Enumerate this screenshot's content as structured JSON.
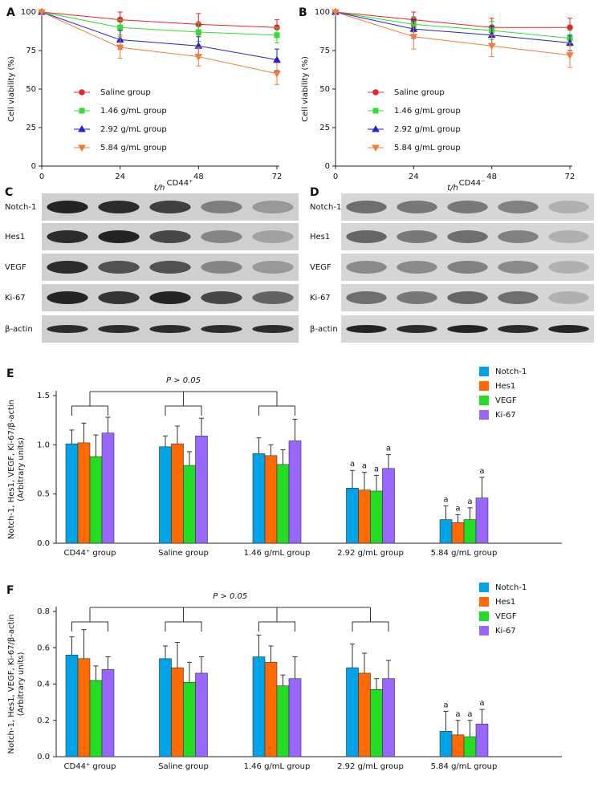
{
  "chart_data": [
    {
      "type": "line",
      "panel": "A",
      "ylabel": "Cell viability (%)",
      "xlabel": "t/h",
      "x": [
        0,
        24,
        48,
        72
      ],
      "xlim": [
        0,
        72
      ],
      "xticks": [
        0,
        24,
        48,
        72
      ],
      "ylim": [
        0,
        100
      ],
      "yticks": [
        0,
        25,
        50,
        75,
        100
      ],
      "series": [
        {
          "name": "Saline group",
          "color": "#e8262a",
          "marker": "circle",
          "values": [
            100,
            95,
            92,
            90
          ],
          "errors": [
            0,
            5,
            7,
            5
          ]
        },
        {
          "name": "1.46 g/mL group",
          "color": "#33dd33",
          "marker": "square",
          "values": [
            100,
            90,
            87,
            85
          ],
          "errors": [
            0,
            5,
            6,
            5
          ]
        },
        {
          "name": "2.92 g/mL group",
          "color": "#2222cc",
          "marker": "triangle",
          "values": [
            100,
            82,
            78,
            69
          ],
          "errors": [
            0,
            6,
            6,
            7
          ]
        },
        {
          "name": "5.84 g/mL group",
          "color": "#f47b3a",
          "marker": "triangle-down",
          "values": [
            100,
            77,
            71,
            60
          ],
          "errors": [
            0,
            7,
            6,
            7
          ]
        }
      ]
    },
    {
      "type": "line",
      "panel": "B",
      "ylabel": "Cell viability (%)",
      "xlabel": "t/h",
      "x": [
        0,
        24,
        48,
        72
      ],
      "xlim": [
        0,
        72
      ],
      "xticks": [
        0,
        24,
        48,
        72
      ],
      "ylim": [
        0,
        100
      ],
      "yticks": [
        0,
        25,
        50,
        75,
        100
      ],
      "series": [
        {
          "name": "Saline group",
          "color": "#e8262a",
          "marker": "circle",
          "values": [
            100,
            95,
            90,
            90
          ],
          "errors": [
            0,
            5,
            6,
            6
          ]
        },
        {
          "name": "1.46 g/mL group",
          "color": "#33dd33",
          "marker": "square",
          "values": [
            100,
            92,
            88,
            83
          ],
          "errors": [
            0,
            5,
            6,
            5
          ]
        },
        {
          "name": "2.92 g/mL group",
          "color": "#2222cc",
          "marker": "triangle",
          "values": [
            100,
            89,
            85,
            80
          ],
          "errors": [
            0,
            6,
            6,
            5
          ]
        },
        {
          "name": "5.84 g/mL group",
          "color": "#f47b3a",
          "marker": "triangle-down",
          "values": [
            100,
            84,
            78,
            72
          ],
          "errors": [
            0,
            8,
            7,
            8
          ]
        }
      ]
    },
    {
      "type": "bar",
      "panel": "E",
      "ylabel": [
        "Notch-1, Hes1, VEGF, Ki-67/β-actin",
        "(Arbitrary units)"
      ],
      "annotation": "P > 0.05",
      "categories": [
        "CD44⁺ group",
        "Saline group",
        "1.46 g/mL group",
        "2.92 g/mL group",
        "5.84 g/mL group"
      ],
      "ylim": [
        0,
        1.5
      ],
      "yticks": [
        {
          "value": 0,
          "label": "0.0"
        },
        0.5,
        {
          "value": 1,
          "label": "1.0"
        },
        1.5
      ],
      "series": [
        {
          "name": "Notch-1",
          "color": "#00a2e8",
          "values": [
            1.01,
            0.98,
            0.91,
            0.56,
            0.24
          ],
          "errors": [
            0.14,
            0.11,
            0.16,
            0.18,
            0.14
          ],
          "labels": [
            null,
            null,
            null,
            "a",
            "a"
          ]
        },
        {
          "name": "Hes1",
          "color": "#ff6a00",
          "values": [
            1.02,
            1.01,
            0.89,
            0.54,
            0.21
          ],
          "errors": [
            0.2,
            0.18,
            0.11,
            0.18,
            0.08
          ],
          "labels": [
            null,
            null,
            null,
            "a",
            "a"
          ]
        },
        {
          "name": "VEGF",
          "color": "#22dd22",
          "values": [
            0.88,
            0.79,
            0.8,
            0.53,
            0.24
          ],
          "errors": [
            0.22,
            0.14,
            0.15,
            0.16,
            0.12
          ],
          "labels": [
            null,
            null,
            null,
            "a",
            "a"
          ]
        },
        {
          "name": "Ki-67",
          "color": "#9966ff",
          "values": [
            1.12,
            1.09,
            1.04,
            0.76,
            0.46
          ],
          "errors": [
            0.16,
            0.18,
            0.22,
            0.14,
            0.21
          ],
          "labels": [
            null,
            null,
            null,
            "a",
            "a"
          ]
        }
      ]
    },
    {
      "type": "bar",
      "panel": "F",
      "ylabel": [
        "Notch-1, Hes1, VEGF, Ki-67/β-actin",
        "(Arbitrary units)"
      ],
      "annotation": "P > 0.05",
      "categories": [
        "CD44⁺ group",
        "Saline group",
        "1.46 g/mL group",
        "2.92 g/mL group",
        "5.84 g/mL group"
      ],
      "ylim": [
        0,
        0.8
      ],
      "yticks": [
        {
          "value": 0,
          "label": "0.0"
        },
        0.2,
        0.4,
        0.6,
        0.8
      ],
      "series": [
        {
          "name": "Notch-1",
          "color": "#00a2e8",
          "values": [
            0.56,
            0.54,
            0.55,
            0.49,
            0.14
          ],
          "errors": [
            0.1,
            0.07,
            0.12,
            0.13,
            0.11
          ],
          "labels": [
            null,
            null,
            null,
            null,
            "a"
          ]
        },
        {
          "name": "Hes1",
          "color": "#ff6a00",
          "values": [
            0.54,
            0.49,
            0.52,
            0.46,
            0.12
          ],
          "errors": [
            0.16,
            0.14,
            0.09,
            0.11,
            0.08
          ],
          "labels": [
            null,
            null,
            null,
            null,
            "a"
          ]
        },
        {
          "name": "VEGF",
          "color": "#22dd22",
          "values": [
            0.42,
            0.41,
            0.39,
            0.37,
            0.11
          ],
          "errors": [
            0.08,
            0.11,
            0.06,
            0.06,
            0.09
          ],
          "labels": [
            null,
            null,
            null,
            null,
            "a"
          ]
        },
        {
          "name": "Ki-67",
          "color": "#9966ff",
          "values": [
            0.48,
            0.46,
            0.43,
            0.43,
            0.18
          ],
          "errors": [
            0.07,
            0.09,
            0.12,
            0.1,
            0.08
          ],
          "labels": [
            null,
            null,
            null,
            null,
            "a"
          ]
        }
      ]
    }
  ],
  "blots": [
    {
      "panel": "C",
      "header": "CD44⁺",
      "rows": [
        "Notch-1",
        "Hes1",
        "VEGF",
        "Ki-67",
        "β-actin"
      ]
    },
    {
      "panel": "D",
      "header": "CD44⁻",
      "rows": [
        "Notch-1",
        "Hes1",
        "VEGF",
        "Ki-67",
        "β-actin"
      ]
    }
  ]
}
